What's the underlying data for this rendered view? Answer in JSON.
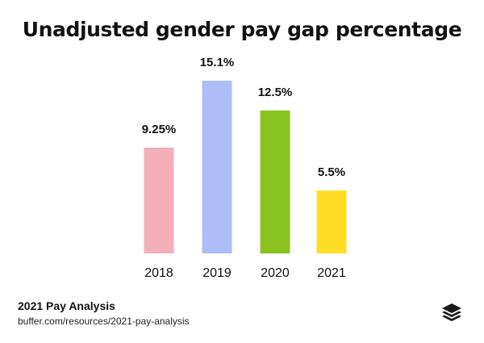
{
  "title": "Unadjusted gender pay gap percentage",
  "chart_data": {
    "type": "bar",
    "title": "Unadjusted gender pay gap percentage",
    "categories": [
      "2018",
      "2019",
      "2020",
      "2021"
    ],
    "values": [
      9.25,
      15.1,
      12.5,
      5.5
    ],
    "value_labels": [
      "9.25%",
      "15.1%",
      "12.5%",
      "5.5%"
    ],
    "colors": [
      "#f4afbb",
      "#aebcf7",
      "#8ac21f",
      "#fddd26"
    ],
    "xlabel": "",
    "ylabel": "",
    "ylim": [
      0,
      15.1
    ],
    "grid": false,
    "legend": "none"
  },
  "footer": {
    "title": "2021 Pay Analysis",
    "url": "buffer.com/resources/2021-pay-analysis"
  },
  "logo_icon": "buffer-stack-icon"
}
